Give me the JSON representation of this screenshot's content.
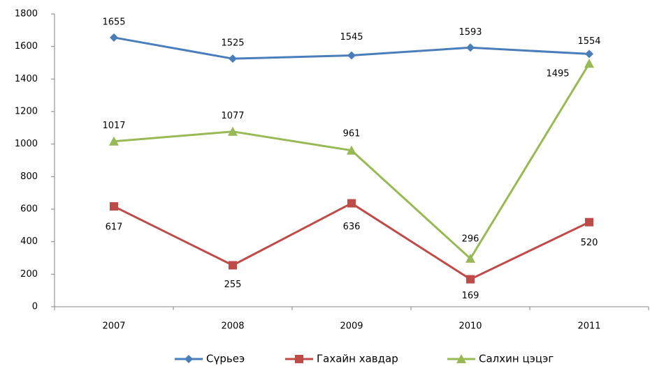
{
  "chart_data": {
    "type": "line",
    "categories": [
      "2007",
      "2008",
      "2009",
      "2010",
      "2011"
    ],
    "series": [
      {
        "name": "Сүрьеэ",
        "color": "#4a7ebb",
        "marker": "diamond",
        "values": [
          1655,
          1525,
          1545,
          1593,
          1554
        ]
      },
      {
        "name": "Гахайн хавдар",
        "color": "#be4b48",
        "marker": "square",
        "values": [
          617,
          255,
          636,
          169,
          520
        ]
      },
      {
        "name": "Салхин цэцэг",
        "color": "#98b954",
        "marker": "triangle",
        "values": [
          1017,
          1077,
          961,
          296,
          1495
        ]
      }
    ],
    "ylim": [
      0,
      1800
    ],
    "yticks": [
      0,
      200,
      400,
      600,
      800,
      1000,
      1200,
      1400,
      1600,
      1800
    ],
    "grid": false,
    "legend": "bottom"
  }
}
